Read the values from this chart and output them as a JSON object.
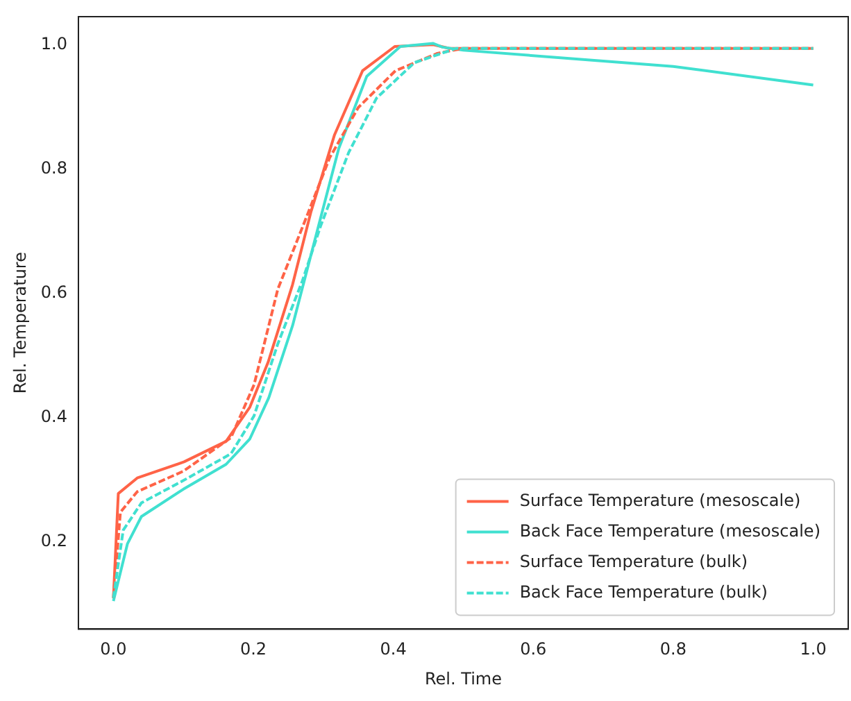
{
  "chart_data": {
    "type": "line",
    "xlabel": "Rel. Time",
    "ylabel": "Rel. Temperature",
    "xlim": [
      -0.05,
      1.05
    ],
    "ylim": [
      0.06,
      1.045
    ],
    "xticks": [
      {
        "value": 0,
        "label": "0.0"
      },
      0.2,
      0.4,
      0.6,
      0.8,
      {
        "value": 1,
        "label": "1.0"
      }
    ],
    "yticks": [
      0.2,
      0.4,
      0.6,
      0.8,
      {
        "value": 1,
        "label": "1.0"
      }
    ],
    "grid": false,
    "legend": "bottom right",
    "marker": "none",
    "series": [
      {
        "name": "Surface Temperature (mesoscale)",
        "color": "#ff6347",
        "line_style": "solid",
        "x": [
          0,
          0.007,
          0.034,
          0.101,
          0.161,
          0.195,
          0.221,
          0.256,
          0.282,
          0.316,
          0.356,
          0.402,
          0.457,
          0.48,
          0.6,
          0.8,
          1.0
        ],
        "values": [
          0.11,
          0.278,
          0.303,
          0.329,
          0.362,
          0.417,
          0.489,
          0.614,
          0.73,
          0.855,
          0.958,
          0.997,
          1.0,
          0.994,
          0.994,
          0.994,
          0.994
        ]
      },
      {
        "name": "Back Face Temperature (mesoscale)",
        "color": "#40e0d0",
        "line_style": "solid",
        "x": [
          0,
          0.02,
          0.04,
          0.1,
          0.161,
          0.195,
          0.222,
          0.256,
          0.29,
          0.322,
          0.362,
          0.41,
          0.457,
          0.47,
          0.5,
          0.8,
          1.0
        ],
        "values": [
          0.105,
          0.197,
          0.241,
          0.285,
          0.325,
          0.366,
          0.432,
          0.548,
          0.695,
          0.833,
          0.949,
          0.997,
          1.002,
          0.996,
          0.991,
          0.965,
          0.935
        ]
      },
      {
        "name": "Surface Temperature (bulk)",
        "color": "#ff6347",
        "line_style": "dashed",
        "x": [
          0,
          0.01,
          0.034,
          0.1,
          0.168,
          0.201,
          0.235,
          0.276,
          0.309,
          0.35,
          0.403,
          0.463,
          0.5,
          0.6,
          0.8,
          1.0
        ],
        "values": [
          0.11,
          0.248,
          0.281,
          0.314,
          0.368,
          0.453,
          0.607,
          0.723,
          0.818,
          0.899,
          0.958,
          0.986,
          0.994,
          0.994,
          0.994,
          0.994
        ]
      },
      {
        "name": "Back Face Temperature (bulk)",
        "color": "#40e0d0",
        "line_style": "dashed",
        "x": [
          0,
          0.014,
          0.04,
          0.1,
          0.168,
          0.201,
          0.235,
          0.27,
          0.296,
          0.336,
          0.376,
          0.43,
          0.49,
          0.6,
          0.8,
          1.0
        ],
        "values": [
          0.11,
          0.219,
          0.263,
          0.299,
          0.342,
          0.403,
          0.519,
          0.62,
          0.708,
          0.826,
          0.914,
          0.971,
          0.994,
          0.994,
          0.994,
          0.994
        ]
      }
    ]
  }
}
